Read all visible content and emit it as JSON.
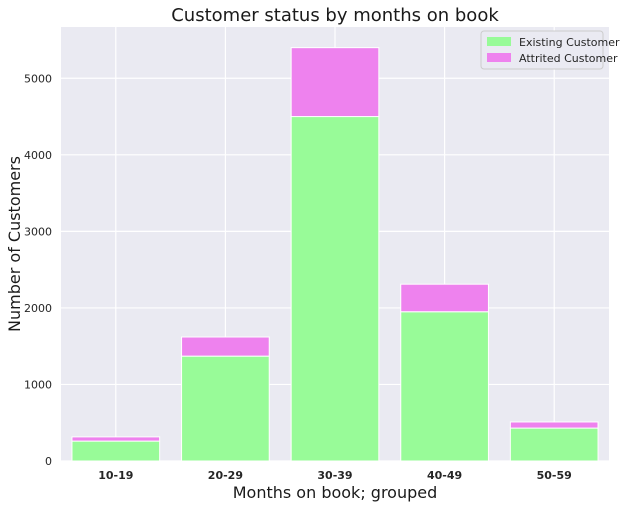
{
  "chart_data": {
    "type": "bar",
    "stacked": true,
    "title": "Customer status by months on book",
    "xlabel": "Months on book; grouped",
    "ylabel": "Number of Customers",
    "categories": [
      "10-19",
      "20-29",
      "30-39",
      "40-49",
      "50-59"
    ],
    "series": [
      {
        "name": "Existing Customer",
        "color": "#98fb98",
        "values": [
          260,
          1370,
          4500,
          1950,
          430
        ]
      },
      {
        "name": "Attrited Customer",
        "color": "#ee82ee",
        "values": [
          55,
          250,
          900,
          360,
          80
        ]
      }
    ],
    "ylim": [
      0,
      5670
    ],
    "yticks": [
      0,
      1000,
      2000,
      3000,
      4000,
      5000
    ],
    "grid": true,
    "legend_position": "top-right",
    "background": "#eaeaf2"
  }
}
